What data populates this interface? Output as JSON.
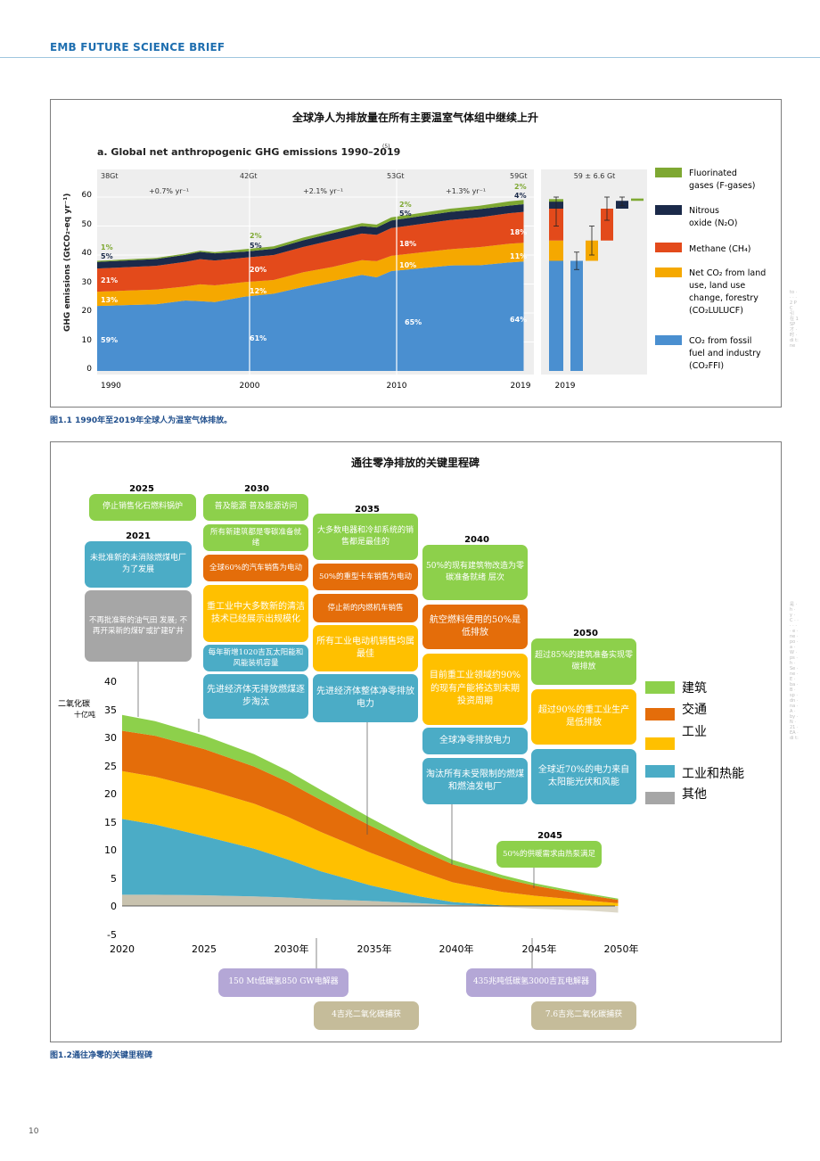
{
  "header": {
    "brand": "EMB FUTURE SCIENCE BRIEF"
  },
  "page_number": "10",
  "figure1": {
    "title": "全球净人为排放量在所有主要温室气体组中继续上升",
    "subtitle": "a. Global net anthropogenic GHG emissions 1990–2019",
    "subtitle_sup": "(5)",
    "caption": "图1.1 1990年至2019年全球人为温室气体排放。",
    "ylabel": "GHG emissions (GtCO₂-eq yr⁻¹)",
    "yticks": [
      "0",
      "10",
      "20",
      "30",
      "40",
      "50",
      "60"
    ],
    "xticks": [
      "1990",
      "2000",
      "2010",
      "2019"
    ],
    "totals": [
      "38Gt",
      "42Gt",
      "53Gt",
      "59Gt"
    ],
    "growth": [
      "+0.7% yr⁻¹",
      "+2.1% yr⁻¹",
      "+1.3% yr⁻¹"
    ],
    "pct_1990": [
      "1%",
      "5%",
      "21%",
      "13%",
      "59%"
    ],
    "pct_2000": [
      "2%",
      "5%",
      "20%",
      "12%",
      "61%"
    ],
    "pct_2010": [
      "2%",
      "5%",
      "18%",
      "10%",
      "65%"
    ],
    "pct_2019": [
      "2%",
      "4%",
      "18%",
      "11%",
      "64%"
    ],
    "inset_total": "59 ± 6.6 Gt",
    "inset_year": "2019",
    "colors": {
      "ffi": "#4a8fd0",
      "lulucf": "#f5a800",
      "ch4": "#e34a1b",
      "n2o": "#1b2a4a",
      "fgas": "#7ea832"
    },
    "legend": [
      {
        "label": "Fluorinated gases (F-gases)",
        "color": "#7ea832"
      },
      {
        "label": "Nitrous oxide (N₂O)",
        "color": "#1b2a4a"
      },
      {
        "label": "Methane (CH₄)",
        "color": "#e34a1b"
      },
      {
        "label": "Net CO₂ from land use, land use change, forestry (CO₂LULUCF)",
        "color": "#f5a800"
      },
      {
        "label": "CO₂ from fossil fuel and industry (CO₂FFI)",
        "color": "#4a8fd0"
      }
    ]
  },
  "figure2": {
    "title": "通往零净排放的关键里程碑",
    "caption": "图1.2通往净零的关键里程碑",
    "ylabel_1": "二氧化碳",
    "ylabel_2": "十亿吨",
    "yticks": [
      "40",
      "35",
      "30",
      "25",
      "20",
      "15",
      "10",
      "5",
      "0",
      "-5"
    ],
    "xticks": [
      "2020",
      "2025",
      "2030年",
      "2035年",
      "2040年",
      "2045年",
      "2050年"
    ],
    "legend": [
      {
        "label": "建筑",
        "color": "#8dd04b"
      },
      {
        "label": "交通",
        "color": "#e46d0a"
      },
      {
        "label": "工业",
        "color": "#ffc000"
      },
      {
        "label": "工业和热能",
        "color": "#4bacc6"
      },
      {
        "label": "其他",
        "color": "#a6a6a6"
      }
    ],
    "years": {
      "y2025": "2025",
      "y2021": "2021",
      "y2030": "2030",
      "y2035": "2035",
      "y2040": "2040",
      "y2050": "2050",
      "y2045": "2045"
    },
    "boxes": {
      "b2025": "停止销售化石燃料锅炉",
      "b2021": "未批准新的未消除燃煤电厂 为了发展",
      "bgray": "不再批准新的油气田 发展; 不再开采新的煤矿或扩建矿井",
      "c30_1": "普及能源 普及能源访问",
      "c30_2": "所有新建筑都是零碳准备就绪",
      "c30_3": "全球60%的汽车销售为电动",
      "c30_4": "重工业中大多数新的清洁技术已经展示出规模化",
      "c30_5": "每年新增1020吉瓦太阳能和风能装机容量",
      "c30_6": "先进经济体无排放燃煤逐步淘汰",
      "c35_1": "大多数电器和冷却系统的销售都是最佳的",
      "c35_2": "50%的重型卡车销售为电动",
      "c35_3": "停止新的内燃机车销售",
      "c35_4": "所有工业电动机销售均属最佳",
      "c35_5": "先进经济体整体净零排放电力",
      "c40_1": "50%的现有建筑物改造为零碳准备就绪 层次",
      "c40_2": "航空燃料使用的50%是低排放",
      "c40_3": "目前重工业领域约90%的现有产能将达到末期 投资周期",
      "c40_4": "全球净零排放电力",
      "c40_5": "淘汰所有未受限制的燃煤和燃油发电厂",
      "c50_1": "超过85%的建筑准备实现零碳排放",
      "c50_2": "超过90%的重工业生产是低排放",
      "c50_3": "全球近70%的电力来自太阳能光伏和风能",
      "c45_1": "50%的供暖需求由热泵满足",
      "h1": "150 Mt低碳氢850 GW电解器",
      "h2": "435兆吨低碳氢3000吉瓦电解器",
      "ccs1": "4吉兆二氧化碳捕获",
      "ccs2": "7.6吉兆二氧化碳捕获"
    }
  }
}
